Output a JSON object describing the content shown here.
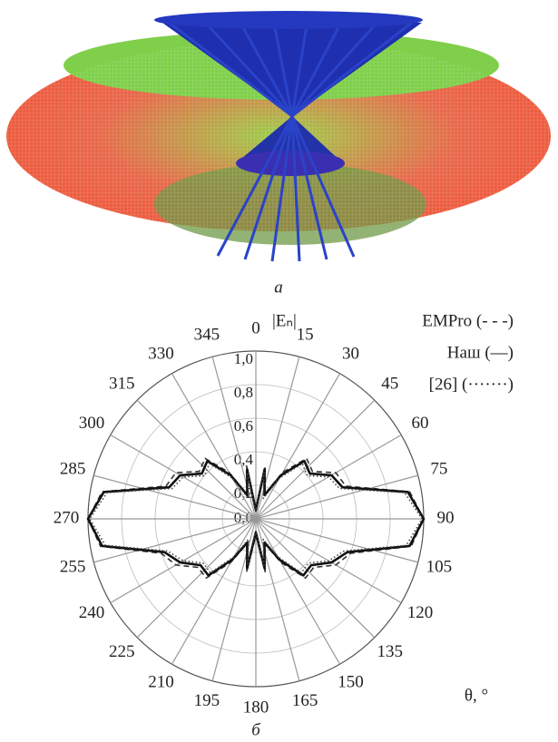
{
  "figure_a": {
    "caption": "а"
  },
  "chart_data": {
    "type": "polar",
    "caption": "б",
    "r_label": "|Eₙ|",
    "theta_label": "θ, °",
    "direction": "clockwise",
    "zero_location": "top",
    "grid": true,
    "rlim": [
      0,
      1
    ],
    "rticks": [
      {
        "value": 0,
        "label": "0,0"
      },
      {
        "value": 0.2,
        "label": "0,2"
      },
      {
        "value": 0.4,
        "label": "0,4"
      },
      {
        "value": 0.6,
        "label": "0,6"
      },
      {
        "value": 0.8,
        "label": "0,8"
      },
      {
        "value": 1,
        "label": "1,0"
      }
    ],
    "thetaticks": [
      0,
      15,
      30,
      45,
      60,
      75,
      90,
      105,
      120,
      135,
      150,
      165,
      180,
      195,
      210,
      225,
      240,
      255,
      270,
      285,
      300,
      315,
      330,
      345
    ],
    "x": [
      0,
      10,
      20,
      30,
      40,
      50,
      60,
      70,
      80,
      90,
      100,
      110,
      120,
      130,
      140,
      150,
      160,
      170,
      180,
      190,
      200,
      210,
      220,
      230,
      240,
      250,
      260,
      270,
      280,
      290,
      300,
      310,
      320,
      330,
      340,
      350
    ],
    "series": [
      {
        "name": "EMPro (- - -)",
        "color": "#333333",
        "linestyle": "dashed",
        "values": [
          0.06,
          0.32,
          0.16,
          0.32,
          0.47,
          0.44,
          0.55,
          0.57,
          0.93,
          1.0,
          0.94,
          0.6,
          0.55,
          0.45,
          0.46,
          0.3,
          0.16,
          0.32,
          0.1,
          0.32,
          0.16,
          0.3,
          0.46,
          0.45,
          0.55,
          0.6,
          0.94,
          1.0,
          0.93,
          0.57,
          0.55,
          0.44,
          0.47,
          0.32,
          0.16,
          0.32
        ]
      },
      {
        "name": "Наш (—)",
        "color": "#111111",
        "linestyle": "solid",
        "values": [
          0.05,
          0.3,
          0.15,
          0.3,
          0.45,
          0.42,
          0.52,
          0.55,
          0.92,
          1.0,
          0.93,
          0.58,
          0.52,
          0.43,
          0.44,
          0.28,
          0.15,
          0.3,
          0.08,
          0.3,
          0.15,
          0.28,
          0.44,
          0.43,
          0.52,
          0.58,
          0.93,
          1.0,
          0.92,
          0.55,
          0.52,
          0.42,
          0.45,
          0.3,
          0.15,
          0.3
        ]
      },
      {
        "name": "[26] (·······)",
        "color": "#444444",
        "linestyle": "dotted",
        "values": [
          0.04,
          0.28,
          0.13,
          0.28,
          0.43,
          0.4,
          0.5,
          0.53,
          0.9,
          0.99,
          0.91,
          0.56,
          0.5,
          0.41,
          0.42,
          0.26,
          0.13,
          0.28,
          0.07,
          0.28,
          0.13,
          0.26,
          0.42,
          0.41,
          0.5,
          0.56,
          0.91,
          0.99,
          0.9,
          0.53,
          0.5,
          0.4,
          0.43,
          0.28,
          0.13,
          0.28
        ]
      }
    ],
    "legend": "upper right"
  }
}
